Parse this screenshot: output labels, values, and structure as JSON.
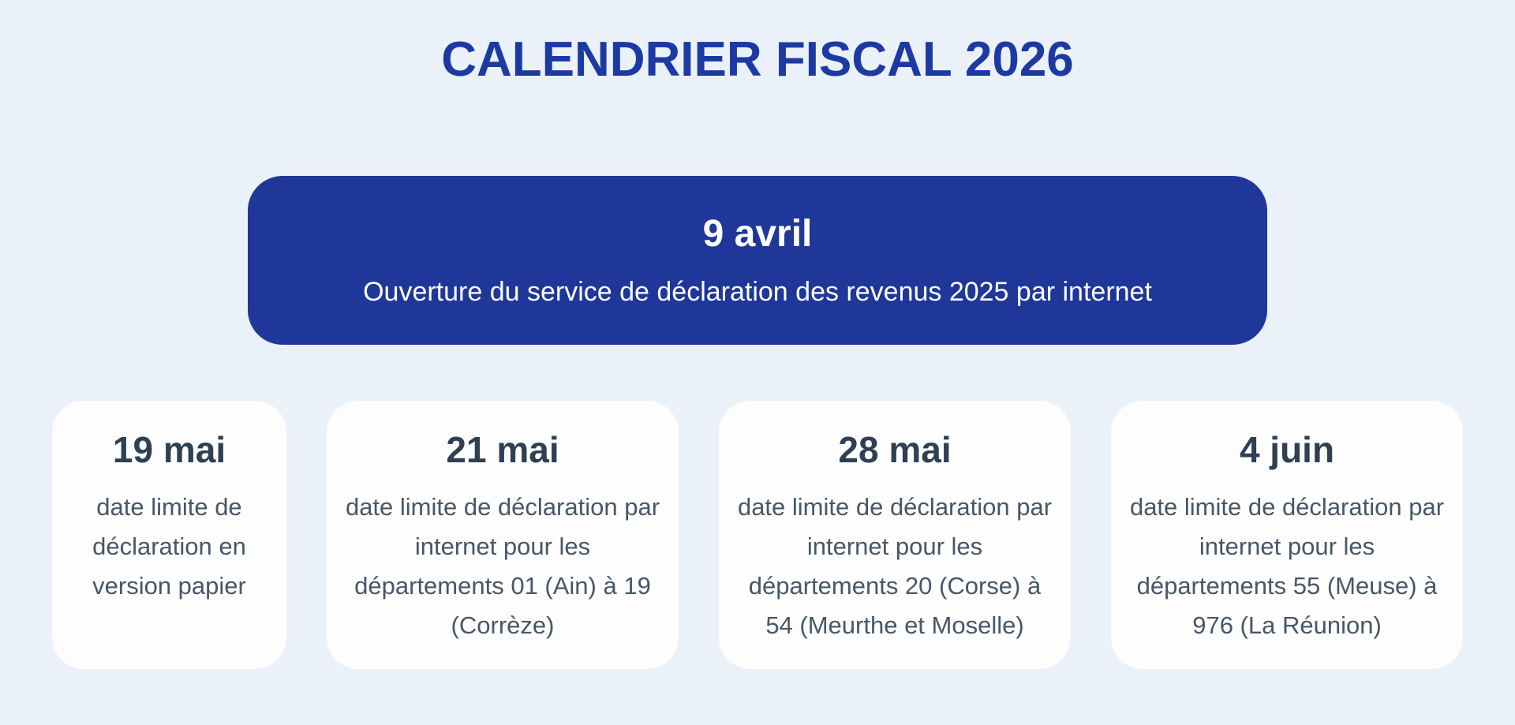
{
  "header": {
    "title": "CALENDRIER FISCAL 2026"
  },
  "banner": {
    "date": "9 avril",
    "description": "Ouverture du service de déclaration des revenus 2025 par internet"
  },
  "cards": [
    {
      "date": "19 mai",
      "description": "date limite de déclaration en version papier"
    },
    {
      "date": "21 mai",
      "description": "date limite de déclaration par internet pour les départements 01 (Ain) à 19 (Corrèze)"
    },
    {
      "date": "28 mai",
      "description": "date limite de déclaration par internet pour les départements 20 (Corse) à 54 (Meurthe et Moselle)"
    },
    {
      "date": "4 juin",
      "description": "date limite de déclaration par internet pour les départements 55 (Meuse) à 976 (La Réunion)"
    }
  ],
  "colors": {
    "background": "#ebf1f9",
    "title_blue": "#1d3aa3",
    "banner_blue": "#1e3799",
    "banner_text": "#ffffff",
    "card_bg": "#fdfdfe",
    "heading_dark": "#2e4053",
    "body_text": "#475767"
  }
}
